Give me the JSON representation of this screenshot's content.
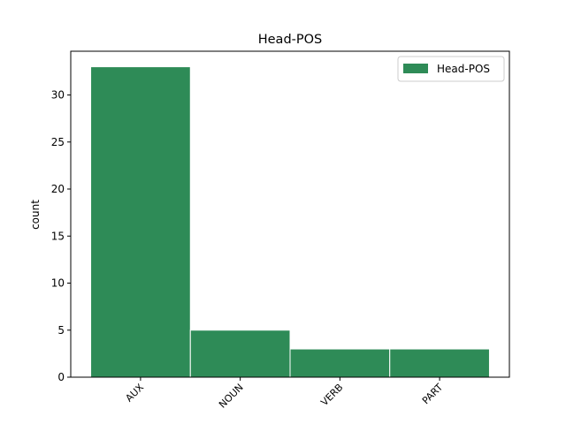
{
  "chart_data": {
    "type": "bar",
    "title": "Head-POS",
    "y_label": "count",
    "categories": [
      "AUX",
      "NOUN",
      "VERB",
      "PART"
    ],
    "series": [
      {
        "name": "Head-POS",
        "color": "#2e8b57",
        "values": [
          33,
          5,
          3,
          3
        ]
      }
    ],
    "ylim": [
      0,
      34.65
    ],
    "yticks": [
      0,
      5,
      10,
      15,
      20,
      25,
      30
    ],
    "legend": "upper right",
    "grid": false
  }
}
